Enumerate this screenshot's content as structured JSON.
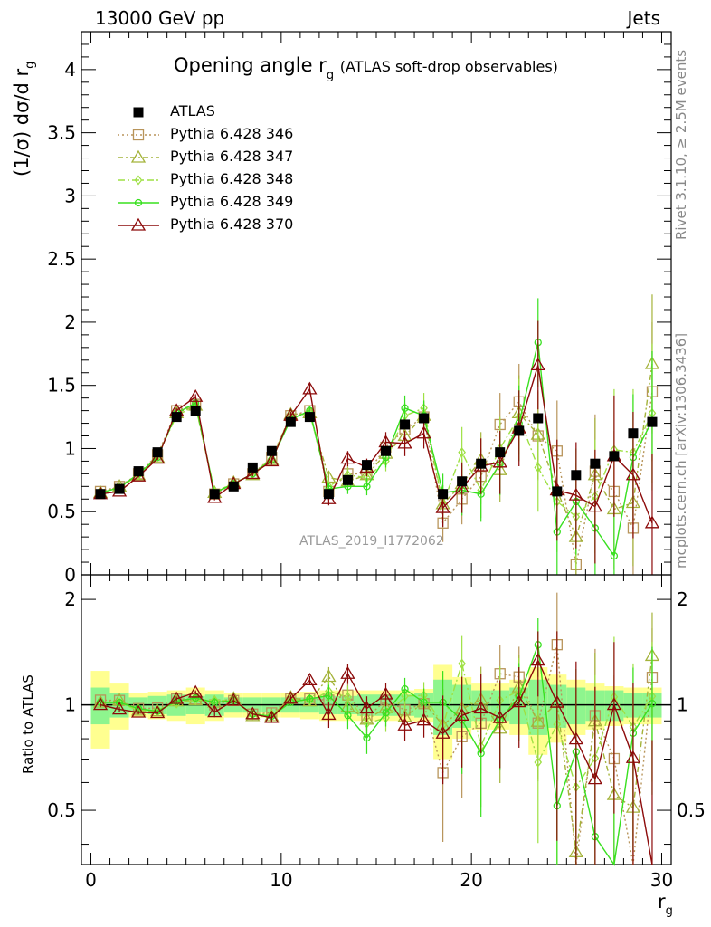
{
  "header": {
    "energy": "13000 GeV pp",
    "process": "Jets"
  },
  "side_labels": {
    "rivet": "Rivet 3.1.10, ≥ 2.5M events",
    "mcplots": "mcplots.cern.ch [arXiv:1306.3436]"
  },
  "title": {
    "main": "Opening angle r",
    "sub": "g",
    "small": "(ATLAS soft-drop observables)"
  },
  "analysis_id": "ATLAS_2019_I1772062",
  "axes": {
    "ylabel_main": "(1/σ) dσ/d r",
    "ylabel_main_sub": "g",
    "ylabel_ratio": "Ratio to ATLAS",
    "xlabel": "r",
    "xlabel_sub": "g"
  },
  "colors": {
    "atlas": "#000000",
    "p346": "#b8945a",
    "p347": "#a4b33a",
    "p348": "#9ee043",
    "p349": "#38e01f",
    "p370": "#8c0a0a",
    "band_inner": "#8ef58e",
    "band_outer": "#ffff90"
  },
  "chart_data": [
    {
      "type": "scatter",
      "panel": "main",
      "xlim": [
        -0.5,
        30.5
      ],
      "ylim": [
        0,
        4.3
      ],
      "xticks": [
        0,
        10,
        20,
        30
      ],
      "yticks": [
        0,
        0.5,
        1,
        1.5,
        2,
        2.5,
        3,
        3.5,
        4
      ],
      "ytick_labels": [
        "0",
        "0.5",
        "1",
        "1.5",
        "2",
        "2.5",
        "3",
        "3.5",
        "4"
      ],
      "legend_position": "top-left",
      "x": [
        0.5,
        1.5,
        2.5,
        3.5,
        4.5,
        5.5,
        6.5,
        7.5,
        8.5,
        9.5,
        10.5,
        11.5,
        12.5,
        13.5,
        14.5,
        15.5,
        16.5,
        17.5,
        18.5,
        19.5,
        20.5,
        21.5,
        22.5,
        23.5,
        24.5,
        25.5,
        26.5,
        27.5,
        28.5,
        29.5
      ],
      "series": [
        {
          "name": "ATLAS",
          "style": "data",
          "values": [
            0.64,
            0.68,
            0.82,
            0.97,
            1.25,
            1.3,
            0.64,
            0.7,
            0.85,
            0.98,
            1.21,
            1.25,
            0.64,
            0.75,
            0.87,
            0.98,
            1.19,
            1.24,
            0.64,
            0.74,
            0.88,
            0.97,
            1.14,
            1.24,
            0.66,
            0.79,
            0.88,
            0.94,
            1.12,
            1.21
          ],
          "errors": [
            0.01,
            0.01,
            0.01,
            0.01,
            0.01,
            0.01,
            0.01,
            0.01,
            0.01,
            0.01,
            0.01,
            0.01,
            0.02,
            0.02,
            0.02,
            0.02,
            0.02,
            0.02,
            0.03,
            0.03,
            0.03,
            0.03,
            0.03,
            0.03,
            0.04,
            0.04,
            0.04,
            0.04,
            0.04,
            0.04
          ]
        },
        {
          "name": "Pythia 6.428 346",
          "marker": "square",
          "dash": "dotted",
          "values": [
            0.66,
            0.7,
            0.8,
            0.95,
            1.3,
            1.35,
            0.64,
            0.72,
            0.8,
            0.93,
            1.26,
            1.3,
            0.66,
            0.8,
            0.8,
            1.01,
            1.15,
            1.25,
            0.41,
            0.6,
            0.78,
            1.19,
            1.37,
            1.1,
            0.98,
            0.08,
            0.82,
            0.66,
            0.37,
            1.45
          ],
          "errors": [
            0.01,
            0.01,
            0.01,
            0.01,
            0.02,
            0.02,
            0.02,
            0.02,
            0.02,
            0.03,
            0.03,
            0.04,
            0.05,
            0.06,
            0.07,
            0.08,
            0.1,
            0.12,
            0.15,
            0.2,
            0.22,
            0.25,
            0.3,
            0.35,
            0.4,
            0.42,
            0.45,
            0.48,
            0.5,
            0.55
          ]
        },
        {
          "name": "Pythia 6.428 347",
          "marker": "triangle",
          "dash": "dashdot",
          "values": [
            0.65,
            0.7,
            0.79,
            0.93,
            1.28,
            1.34,
            0.65,
            0.73,
            0.79,
            0.91,
            1.27,
            1.28,
            0.77,
            0.74,
            0.79,
            0.96,
            1.1,
            1.26,
            0.56,
            0.72,
            0.91,
            0.83,
            1.28,
            1.11,
            0.67,
            0.3,
            0.79,
            0.52,
            0.57,
            1.67
          ],
          "errors": [
            0.01,
            0.01,
            0.01,
            0.01,
            0.02,
            0.02,
            0.02,
            0.02,
            0.02,
            0.03,
            0.03,
            0.04,
            0.05,
            0.06,
            0.07,
            0.08,
            0.1,
            0.12,
            0.15,
            0.2,
            0.22,
            0.25,
            0.3,
            0.35,
            0.4,
            0.42,
            0.45,
            0.48,
            0.5,
            0.55
          ]
        },
        {
          "name": "Pythia 6.428 348",
          "marker": "diamond",
          "dash": "dashdot2",
          "values": [
            0.65,
            0.69,
            0.79,
            0.94,
            1.26,
            1.34,
            0.66,
            0.72,
            0.8,
            0.92,
            1.25,
            1.28,
            0.7,
            0.79,
            0.77,
            0.9,
            1.26,
            1.32,
            0.56,
            0.97,
            0.67,
            1.0,
            1.25,
            0.85,
            0.58,
            0.46,
            0.62,
            0.99,
            0.97,
            1.28
          ],
          "errors": [
            0.01,
            0.01,
            0.01,
            0.01,
            0.02,
            0.02,
            0.02,
            0.02,
            0.02,
            0.03,
            0.03,
            0.04,
            0.05,
            0.06,
            0.07,
            0.08,
            0.1,
            0.12,
            0.15,
            0.2,
            0.22,
            0.25,
            0.3,
            0.35,
            0.4,
            0.42,
            0.45,
            0.48,
            0.5,
            0.55
          ]
        },
        {
          "name": "Pythia 6.428 349",
          "marker": "circle",
          "dash": "solid",
          "values": [
            0.65,
            0.69,
            0.8,
            0.93,
            1.28,
            1.36,
            0.65,
            0.72,
            0.8,
            0.91,
            1.23,
            1.3,
            0.68,
            0.7,
            0.7,
            0.93,
            1.32,
            1.26,
            0.65,
            0.67,
            0.64,
            0.88,
            1.2,
            1.84,
            0.34,
            0.58,
            0.37,
            0.15,
            0.93,
            1.22
          ],
          "errors": [
            0.01,
            0.01,
            0.01,
            0.01,
            0.02,
            0.02,
            0.02,
            0.02,
            0.02,
            0.03,
            0.03,
            0.04,
            0.05,
            0.06,
            0.07,
            0.08,
            0.1,
            0.12,
            0.15,
            0.2,
            0.22,
            0.25,
            0.3,
            0.35,
            0.4,
            0.42,
            0.45,
            0.48,
            0.5,
            0.55
          ]
        },
        {
          "name": "Pythia 6.428 370",
          "marker": "triangle",
          "dash": "solid",
          "values": [
            0.64,
            0.66,
            0.78,
            0.92,
            1.3,
            1.41,
            0.61,
            0.72,
            0.8,
            0.9,
            1.26,
            1.47,
            0.6,
            0.92,
            0.85,
            1.05,
            1.04,
            1.12,
            0.53,
            0.69,
            0.86,
            0.89,
            1.16,
            1.66,
            0.67,
            0.63,
            0.54,
            0.94,
            0.79,
            0.41
          ],
          "errors": [
            0.01,
            0.01,
            0.01,
            0.01,
            0.02,
            0.02,
            0.02,
            0.02,
            0.02,
            0.03,
            0.03,
            0.04,
            0.05,
            0.06,
            0.07,
            0.08,
            0.1,
            0.12,
            0.15,
            0.2,
            0.22,
            0.25,
            0.3,
            0.35,
            0.4,
            0.42,
            0.45,
            0.48,
            0.5,
            0.55
          ]
        }
      ]
    },
    {
      "type": "scatter",
      "panel": "ratio",
      "xlim": [
        -0.5,
        30.5
      ],
      "ylim": [
        0.35,
        2.35
      ],
      "yscale": "log",
      "xticks": [
        0,
        10,
        20,
        30
      ],
      "xtick_labels": [
        "0",
        "10",
        "20",
        "30"
      ],
      "yticks": [
        0.5,
        1,
        2
      ],
      "ytick_labels": [
        "0.5",
        "1",
        "2"
      ],
      "reference_line": 1,
      "band_inner_halfwidth": [
        0.12,
        0.08,
        0.05,
        0.06,
        0.07,
        0.06,
        0.07,
        0.05,
        0.05,
        0.05,
        0.05,
        0.05,
        0.06,
        0.06,
        0.07,
        0.07,
        0.07,
        0.08,
        0.18,
        0.14,
        0.1,
        0.1,
        0.12,
        0.18,
        0.14,
        0.12,
        0.1,
        0.1,
        0.08,
        0.08
      ],
      "band_outer_halfwidth": [
        0.25,
        0.15,
        0.08,
        0.09,
        0.1,
        0.12,
        0.1,
        0.08,
        0.08,
        0.08,
        0.08,
        0.09,
        0.1,
        0.1,
        0.1,
        0.1,
        0.1,
        0.11,
        0.3,
        0.2,
        0.15,
        0.15,
        0.18,
        0.28,
        0.22,
        0.18,
        0.15,
        0.13,
        0.12,
        0.12
      ]
    }
  ]
}
